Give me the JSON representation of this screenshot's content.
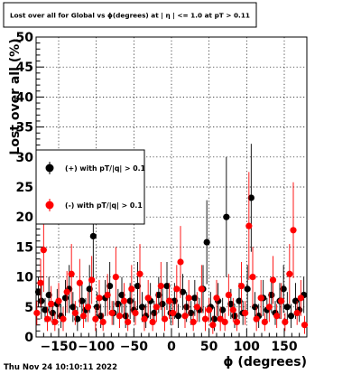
{
  "chart_data": {
    "type": "scatter",
    "title": "Lost over all for Global vs ϕ(degrees) at | η | <= 1.0 at pT > 0.11",
    "xlabel": "ϕ (degrees)",
    "ylabel": "Lost over all (%)",
    "xlim": [
      -180,
      180
    ],
    "ylim": [
      0,
      50
    ],
    "x_ticks": [
      -150,
      -100,
      -50,
      0,
      50,
      100,
      150
    ],
    "y_ticks": [
      0,
      5,
      10,
      15,
      20,
      25,
      30,
      35,
      40,
      45,
      50
    ],
    "grid": true,
    "legend_position": "left",
    "footer": "Thu Nov 24 10:10:11 2022",
    "series": [
      {
        "name": "(+) with pT/|q| > 0.1",
        "color": "#000000",
        "points": [
          {
            "x": -177,
            "y": 7.5,
            "err": 2.5
          },
          {
            "x": -173,
            "y": 6,
            "err": 3
          },
          {
            "x": -168,
            "y": 4.5,
            "err": 2
          },
          {
            "x": -163,
            "y": 7,
            "err": 3
          },
          {
            "x": -158,
            "y": 4,
            "err": 2
          },
          {
            "x": -152,
            "y": 5.5,
            "err": 2.5
          },
          {
            "x": -147,
            "y": 3.5,
            "err": 2
          },
          {
            "x": -141,
            "y": 6.5,
            "err": 3
          },
          {
            "x": -136,
            "y": 8,
            "err": 4
          },
          {
            "x": -131,
            "y": 5,
            "err": 2.5
          },
          {
            "x": -125,
            "y": 3,
            "err": 2
          },
          {
            "x": -119,
            "y": 6,
            "err": 3
          },
          {
            "x": -114,
            "y": 4.5,
            "err": 2
          },
          {
            "x": -109,
            "y": 8,
            "err": 4
          },
          {
            "x": -104,
            "y": 16.8,
            "err": 7
          },
          {
            "x": -99,
            "y": 5,
            "err": 2.5
          },
          {
            "x": -94,
            "y": 3.5,
            "err": 2
          },
          {
            "x": -88,
            "y": 6.5,
            "err": 3
          },
          {
            "x": -82,
            "y": 8.5,
            "err": 4
          },
          {
            "x": -77,
            "y": 4,
            "err": 2
          },
          {
            "x": -71,
            "y": 5.5,
            "err": 2.5
          },
          {
            "x": -66,
            "y": 7,
            "err": 3
          },
          {
            "x": -61,
            "y": 3.5,
            "err": 2
          },
          {
            "x": -55,
            "y": 6,
            "err": 3
          },
          {
            "x": -50,
            "y": 4.5,
            "err": 2
          },
          {
            "x": -45,
            "y": 8.5,
            "err": 4
          },
          {
            "x": -39,
            "y": 5,
            "err": 2.5
          },
          {
            "x": -34,
            "y": 3.5,
            "err": 2
          },
          {
            "x": -28,
            "y": 6,
            "err": 3
          },
          {
            "x": -23,
            "y": 4,
            "err": 2
          },
          {
            "x": -17,
            "y": 7,
            "err": 3
          },
          {
            "x": -12,
            "y": 5.5,
            "err": 2.5
          },
          {
            "x": -6,
            "y": 8.5,
            "err": 4
          },
          {
            "x": -1,
            "y": 4,
            "err": 2
          },
          {
            "x": 4,
            "y": 6,
            "err": 3
          },
          {
            "x": 9,
            "y": 3.5,
            "err": 2
          },
          {
            "x": 15,
            "y": 7.5,
            "err": 3
          },
          {
            "x": 20,
            "y": 5,
            "err": 2.5
          },
          {
            "x": 26,
            "y": 4,
            "err": 2
          },
          {
            "x": 31,
            "y": 6.5,
            "err": 3
          },
          {
            "x": 37,
            "y": 4.5,
            "err": 2
          },
          {
            "x": 42,
            "y": 8,
            "err": 4
          },
          {
            "x": 47,
            "y": 15.8,
            "err": 7
          },
          {
            "x": 52,
            "y": 5,
            "err": 2.5
          },
          {
            "x": 57,
            "y": 3,
            "err": 2
          },
          {
            "x": 62,
            "y": 6,
            "err": 3
          },
          {
            "x": 68,
            "y": 4.5,
            "err": 2
          },
          {
            "x": 73,
            "y": 20,
            "err": 10
          },
          {
            "x": 79,
            "y": 5.5,
            "err": 2.5
          },
          {
            "x": 84,
            "y": 3.5,
            "err": 2
          },
          {
            "x": 90,
            "y": 6,
            "err": 3
          },
          {
            "x": 95,
            "y": 4,
            "err": 2
          },
          {
            "x": 101,
            "y": 8,
            "err": 4
          },
          {
            "x": 106,
            "y": 23.2,
            "err": 9
          },
          {
            "x": 111,
            "y": 5,
            "err": 2.5
          },
          {
            "x": 116,
            "y": 3.5,
            "err": 2
          },
          {
            "x": 122,
            "y": 6.5,
            "err": 3
          },
          {
            "x": 127,
            "y": 4.5,
            "err": 2
          },
          {
            "x": 133,
            "y": 7,
            "err": 3
          },
          {
            "x": 138,
            "y": 4,
            "err": 2
          },
          {
            "x": 144,
            "y": 6,
            "err": 3
          },
          {
            "x": 149,
            "y": 8,
            "err": 4
          },
          {
            "x": 154,
            "y": 5,
            "err": 2.5
          },
          {
            "x": 159,
            "y": 3.5,
            "err": 2
          },
          {
            "x": 165,
            "y": 6,
            "err": 3
          },
          {
            "x": 170,
            "y": 4.5,
            "err": 2
          },
          {
            "x": 176,
            "y": 7,
            "err": 3
          }
        ]
      },
      {
        "name": "(-) with pT/|q| > 0.1",
        "color": "#ff0000",
        "points": [
          {
            "x": -179,
            "y": 4,
            "err": 2
          },
          {
            "x": -174,
            "y": 9,
            "err": 4
          },
          {
            "x": -170,
            "y": 14.5,
            "err": 7
          },
          {
            "x": -165,
            "y": 3,
            "err": 2
          },
          {
            "x": -160,
            "y": 5.5,
            "err": 3
          },
          {
            "x": -155,
            "y": 2.5,
            "err": 1.5
          },
          {
            "x": -150,
            "y": 6,
            "err": 3
          },
          {
            "x": -144,
            "y": 3,
            "err": 2
          },
          {
            "x": -139,
            "y": 7.5,
            "err": 3.5
          },
          {
            "x": -133,
            "y": 10.5,
            "err": 5
          },
          {
            "x": -128,
            "y": 4,
            "err": 2
          },
          {
            "x": -122,
            "y": 9,
            "err": 4
          },
          {
            "x": -117,
            "y": 3.5,
            "err": 2
          },
          {
            "x": -111,
            "y": 5,
            "err": 2.5
          },
          {
            "x": -106,
            "y": 9.5,
            "err": 4
          },
          {
            "x": -101,
            "y": 3,
            "err": 2
          },
          {
            "x": -96,
            "y": 6.5,
            "err": 3
          },
          {
            "x": -91,
            "y": 2.5,
            "err": 1.5
          },
          {
            "x": -85,
            "y": 7,
            "err": 3.5
          },
          {
            "x": -79,
            "y": 4,
            "err": 2
          },
          {
            "x": -74,
            "y": 10,
            "err": 5
          },
          {
            "x": -69,
            "y": 3.5,
            "err": 2
          },
          {
            "x": -63,
            "y": 6,
            "err": 3
          },
          {
            "x": -58,
            "y": 2.5,
            "err": 1.5
          },
          {
            "x": -53,
            "y": 8,
            "err": 4
          },
          {
            "x": -48,
            "y": 4,
            "err": 2
          },
          {
            "x": -42,
            "y": 10.5,
            "err": 5
          },
          {
            "x": -36,
            "y": 3,
            "err": 2
          },
          {
            "x": -31,
            "y": 6.5,
            "err": 3
          },
          {
            "x": -25,
            "y": 2.5,
            "err": 1.5
          },
          {
            "x": -20,
            "y": 5,
            "err": 2.5
          },
          {
            "x": -14,
            "y": 8.5,
            "err": 4
          },
          {
            "x": -9,
            "y": 3,
            "err": 2
          },
          {
            "x": -3,
            "y": 6,
            "err": 3
          },
          {
            "x": 2,
            "y": 4,
            "err": 2
          },
          {
            "x": 7,
            "y": 8,
            "err": 4
          },
          {
            "x": 12,
            "y": 12.5,
            "err": 6
          },
          {
            "x": 18,
            "y": 3.5,
            "err": 2
          },
          {
            "x": 23,
            "y": 6.5,
            "err": 3
          },
          {
            "x": 29,
            "y": 2.5,
            "err": 1.5
          },
          {
            "x": 34,
            "y": 5,
            "err": 2.5
          },
          {
            "x": 40,
            "y": 8,
            "err": 4
          },
          {
            "x": 45,
            "y": 3,
            "err": 2
          },
          {
            "x": 50,
            "y": 4.5,
            "err": 2
          },
          {
            "x": 55,
            "y": 2,
            "err": 1.5
          },
          {
            "x": 60,
            "y": 6.5,
            "err": 3
          },
          {
            "x": 65,
            "y": 3,
            "err": 2
          },
          {
            "x": 71,
            "y": 2.5,
            "err": 1.5
          },
          {
            "x": 76,
            "y": 7,
            "err": 3.5
          },
          {
            "x": 82,
            "y": 4.5,
            "err": 2
          },
          {
            "x": 87,
            "y": 2.5,
            "err": 1.5
          },
          {
            "x": 93,
            "y": 8.5,
            "err": 4
          },
          {
            "x": 98,
            "y": 4,
            "err": 2
          },
          {
            "x": 103,
            "y": 18.5,
            "err": 9
          },
          {
            "x": 108,
            "y": 10,
            "err": 5
          },
          {
            "x": 113,
            "y": 3,
            "err": 2
          },
          {
            "x": 119,
            "y": 6.5,
            "err": 3
          },
          {
            "x": 124,
            "y": 2.5,
            "err": 1.5
          },
          {
            "x": 130,
            "y": 5,
            "err": 2.5
          },
          {
            "x": 135,
            "y": 9.5,
            "err": 4
          },
          {
            "x": 140,
            "y": 3.5,
            "err": 2
          },
          {
            "x": 146,
            "y": 6,
            "err": 3
          },
          {
            "x": 151,
            "y": 2.5,
            "err": 1.5
          },
          {
            "x": 157,
            "y": 10.5,
            "err": 5
          },
          {
            "x": 162,
            "y": 17.8,
            "err": 8
          },
          {
            "x": 167,
            "y": 4,
            "err": 2
          },
          {
            "x": 172,
            "y": 6.5,
            "err": 3
          },
          {
            "x": 177,
            "y": 2,
            "err": 1.5
          }
        ]
      }
    ]
  }
}
